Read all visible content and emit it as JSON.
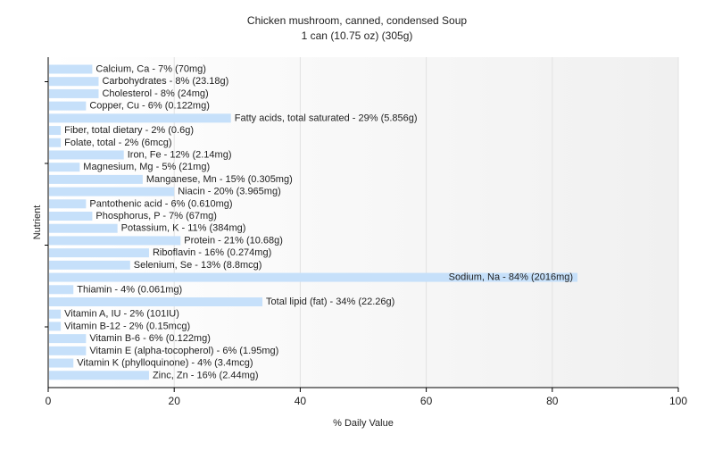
{
  "chart_data": {
    "type": "bar",
    "orientation": "horizontal",
    "title": "Chicken mushroom, canned, condensed Soup",
    "subtitle": "1 can (10.75 oz) (305g)",
    "xlabel": "% Daily Value",
    "ylabel": "Nutrient",
    "xlim": [
      0,
      100
    ],
    "xticks": [
      0,
      20,
      40,
      60,
      80,
      100
    ],
    "grid": true,
    "bar_color": "#c6e0fa",
    "categories": [
      "Calcium, Ca - 7% (70mg)",
      "Carbohydrates - 8% (23.18g)",
      "Cholesterol - 8% (24mg)",
      "Copper, Cu - 6% (0.122mg)",
      "Fatty acids, total saturated - 29% (5.856g)",
      "Fiber, total dietary - 2% (0.6g)",
      "Folate, total - 2% (6mcg)",
      "Iron, Fe - 12% (2.14mg)",
      "Magnesium, Mg - 5% (21mg)",
      "Manganese, Mn - 15% (0.305mg)",
      "Niacin - 20% (3.965mg)",
      "Pantothenic acid - 6% (0.610mg)",
      "Phosphorus, P - 7% (67mg)",
      "Potassium, K - 11% (384mg)",
      "Protein - 21% (10.68g)",
      "Riboflavin - 16% (0.274mg)",
      "Selenium, Se - 13% (8.8mcg)",
      "Sodium, Na - 84% (2016mg)",
      "Thiamin - 4% (0.061mg)",
      "Total lipid (fat) - 34% (22.26g)",
      "Vitamin A, IU - 2% (101IU)",
      "Vitamin B-12 - 2% (0.15mcg)",
      "Vitamin B-6 - 6% (0.122mg)",
      "Vitamin E (alpha-tocopherol) - 6% (1.95mg)",
      "Vitamin K (phylloquinone) - 4% (3.4mcg)",
      "Zinc, Zn - 16% (2.44mg)"
    ],
    "values": [
      7,
      8,
      8,
      6,
      29,
      2,
      2,
      12,
      5,
      15,
      20,
      6,
      7,
      11,
      21,
      16,
      13,
      84,
      4,
      34,
      2,
      2,
      6,
      6,
      4,
      16
    ]
  }
}
